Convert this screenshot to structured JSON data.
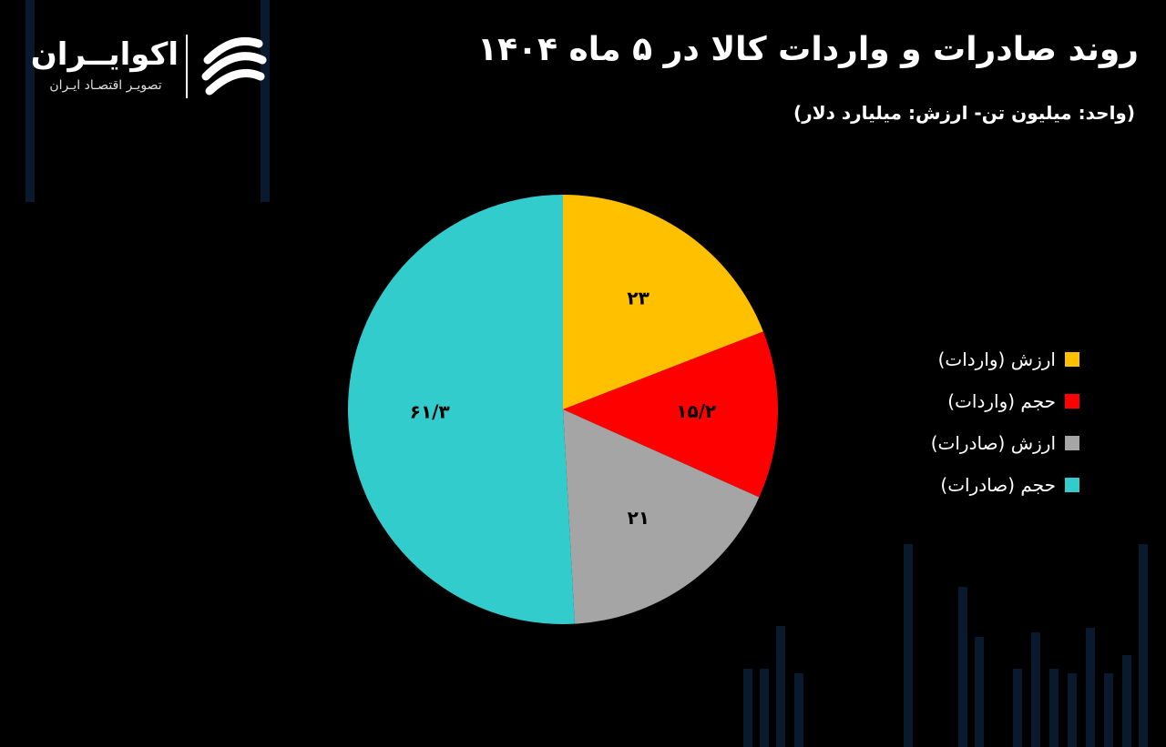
{
  "header": {
    "title": "روند صادرات و واردات کالا در ۵ ماه ۱۴۰۴",
    "subtitle": "(واحد: میلیون تن- ارزش: میلیارد دلار)"
  },
  "brand": {
    "name": "اکوایــران",
    "tagline": "تصویـر اقتصـاد ایـران",
    "logo_icon": "ecoiran-logo-icon"
  },
  "chart_data": {
    "type": "pie",
    "title": "روند صادرات و واردات کالا در ۵ ماه ۱۴۰۴",
    "slices": [
      {
        "label": "ارزش (واردات)",
        "value": 23,
        "display": "۲۳",
        "color": "#FFC000"
      },
      {
        "label": "حجم (واردات)",
        "value": 15.2,
        "display": "۱۵/۲",
        "color": "#FF0000"
      },
      {
        "label": "ارزش (صادرات)",
        "value": 21,
        "display": "۲۱",
        "color": "#A5A5A5"
      },
      {
        "label": "حجم (صادرات)",
        "value": 61.3,
        "display": "۶۱/۳",
        "color": "#33CCCC"
      }
    ],
    "start_angle": "12 o'clock",
    "direction": "clockwise",
    "legend_position": "right"
  }
}
